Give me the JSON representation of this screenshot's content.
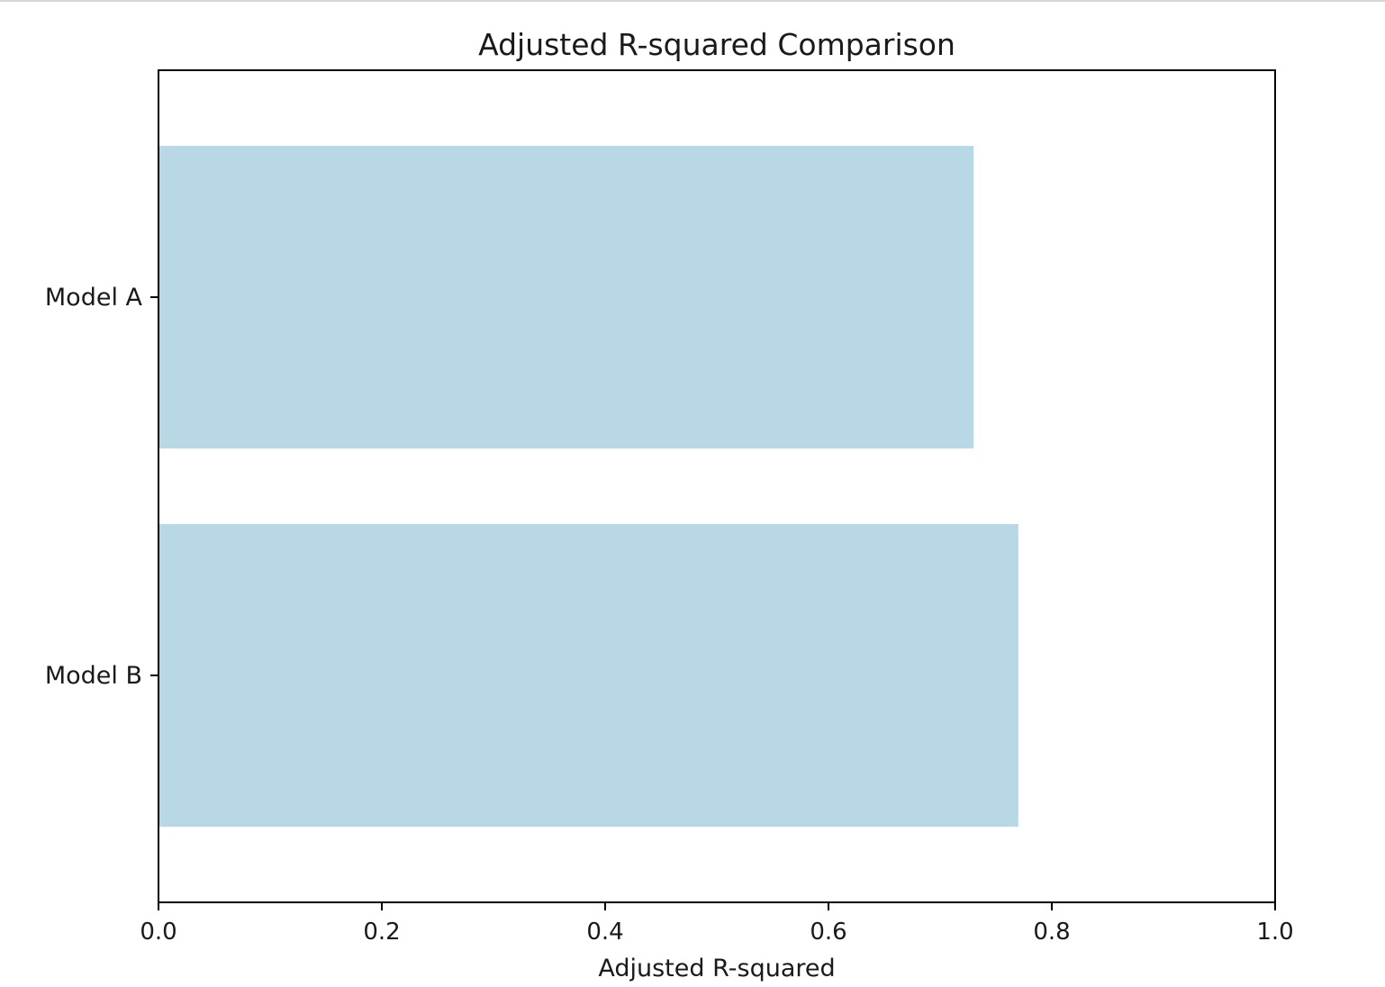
{
  "chart_data": {
    "type": "bar",
    "orientation": "horizontal",
    "title": "Adjusted R-squared Comparison",
    "xlabel": "Adjusted R-squared",
    "ylabel": "",
    "categories": [
      "Model A",
      "Model B"
    ],
    "values": [
      0.73,
      0.77
    ],
    "xlim": [
      0.0,
      1.0
    ],
    "xticks": [
      "0.0",
      "0.2",
      "0.4",
      "0.6",
      "0.8",
      "1.0"
    ],
    "bar_color": "#b7d8e4",
    "grid": false,
    "legend": "none"
  }
}
